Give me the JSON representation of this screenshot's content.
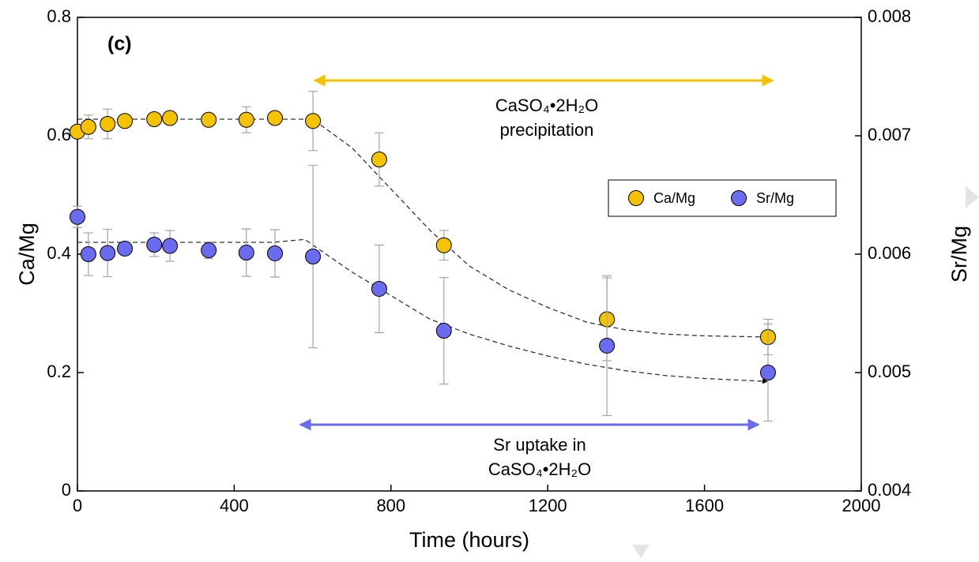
{
  "chart_data": {
    "type": "scatter",
    "panel_label": "(c)",
    "xlabel": "Time (hours)",
    "ylabel": "Ca/Mg",
    "y2label": "Sr/Mg",
    "xlim": [
      0,
      2000
    ],
    "xticks": [
      0,
      400,
      800,
      1200,
      1600,
      2000
    ],
    "ylim": [
      0,
      0.8
    ],
    "yticks": [
      0,
      0.2,
      0.4,
      0.6,
      0.8
    ],
    "y2lim": [
      0.004,
      0.008
    ],
    "y2ticks": [
      0.004,
      0.005,
      0.006,
      0.007,
      0.008
    ],
    "series": [
      {
        "name": "Ca/Mg",
        "color": "#f5c200",
        "axis": "y",
        "x": [
          0,
          28,
          77,
          121,
          196,
          236,
          335,
          431,
          504,
          601,
          770,
          935,
          1351,
          1762
        ],
        "values": [
          0.607,
          0.615,
          0.62,
          0.625,
          0.628,
          0.63,
          0.627,
          0.627,
          0.63,
          0.625,
          0.56,
          0.415,
          0.29,
          0.26
        ],
        "errors": [
          0.01,
          0.02,
          0.025,
          0.01,
          0.01,
          0.01,
          0.005,
          0.022,
          0.01,
          0.05,
          0.045,
          0.025,
          0.07,
          0.03
        ]
      },
      {
        "name": "Sr/Mg",
        "color": "#6b6bef",
        "axis": "y2",
        "x": [
          0,
          28,
          77,
          121,
          196,
          236,
          335,
          431,
          504,
          601,
          770,
          935,
          1351,
          1762
        ],
        "values": [
          0.006315,
          0.006,
          0.00601,
          0.006047,
          0.00608,
          0.00607,
          0.006033,
          0.006013,
          0.006007,
          0.00598,
          0.005707,
          0.005353,
          0.005227,
          0.005
        ],
        "errors": [
          9e-05,
          0.00018,
          0.0002,
          5e-05,
          0.0001,
          0.00013,
          7e-05,
          0.0002,
          0.0002,
          0.00077,
          0.00037,
          0.00045,
          0.00059,
          0.00041
        ]
      }
    ],
    "fits": [
      {
        "axis": "y",
        "x": [
          0,
          600,
          700,
          800,
          900,
          1000,
          1100,
          1200,
          1300,
          1400,
          1500,
          1600,
          1760
        ],
        "values": [
          0.628,
          0.628,
          0.58,
          0.51,
          0.44,
          0.38,
          0.34,
          0.31,
          0.285,
          0.272,
          0.265,
          0.262,
          0.26
        ]
      },
      {
        "axis": "y2",
        "x": [
          0,
          500,
          580,
          700,
          800,
          900,
          1000,
          1100,
          1200,
          1300,
          1400,
          1500,
          1600,
          1760
        ],
        "values": [
          0.0061,
          0.0061,
          0.006125,
          0.00585,
          0.00565,
          0.00545,
          0.005325,
          0.005225,
          0.00514,
          0.00507,
          0.005015,
          0.004975,
          0.00495,
          0.004925
        ]
      }
    ],
    "annotations": [
      {
        "lines": [
          "CaSO₄•2H₂O",
          "precipitation"
        ],
        "color": "#f5c200"
      },
      {
        "lines": [
          "Sr uptake in",
          "CaSO₄•2H₂O"
        ],
        "color": "#6b6bef"
      }
    ],
    "legend": "upper right"
  }
}
